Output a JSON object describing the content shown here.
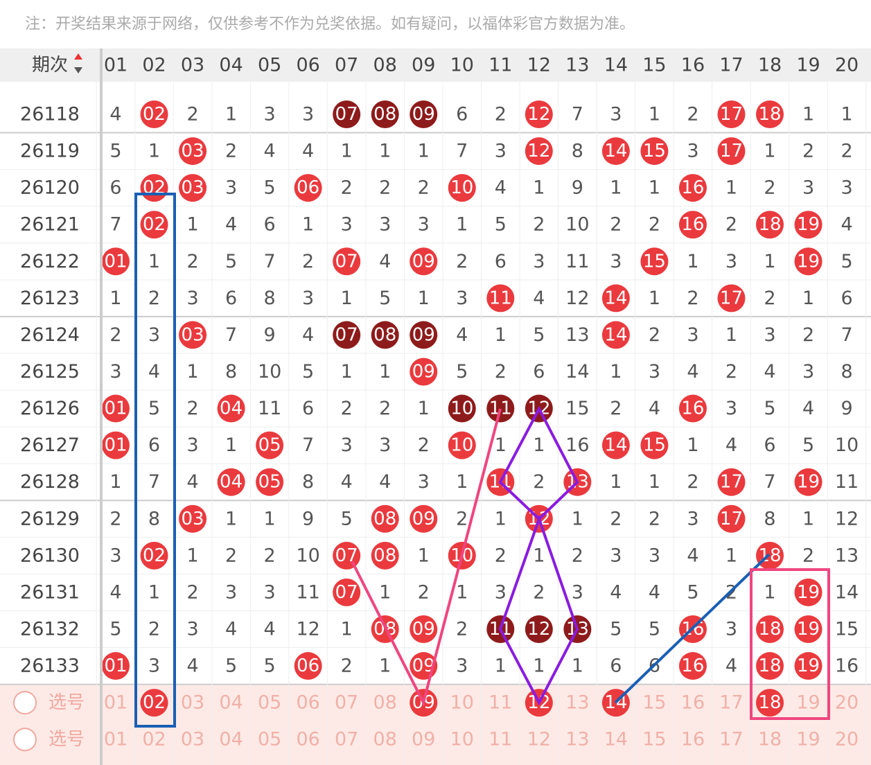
{
  "note": "注：开奖结果来源于网络，仅供参考不作为兑奖依据。如有疑问，以福体彩官方数据为准。",
  "header": {
    "period": "期次",
    "columns": [
      "01",
      "02",
      "03",
      "04",
      "05",
      "06",
      "07",
      "08",
      "09",
      "10",
      "11",
      "12",
      "13",
      "14",
      "15",
      "16",
      "17",
      "18",
      "19",
      "20"
    ]
  },
  "rows": [
    {
      "period": "26118",
      "cells": [
        "4",
        {
          "text": "02",
          "ball": "red"
        },
        "2",
        "1",
        "3",
        "3",
        {
          "text": "07",
          "ball": "dark"
        },
        {
          "text": "08",
          "ball": "dark"
        },
        {
          "text": "09",
          "ball": "dark"
        },
        "6",
        "2",
        {
          "text": "12",
          "ball": "red"
        },
        "7",
        "3",
        "1",
        "2",
        {
          "text": "17",
          "ball": "red"
        },
        {
          "text": "18",
          "ball": "red"
        },
        "1",
        "1"
      ]
    },
    {
      "period": "26119",
      "cells": [
        "5",
        "1",
        {
          "text": "03",
          "ball": "red"
        },
        "2",
        "4",
        "4",
        "1",
        "1",
        "1",
        "7",
        "3",
        {
          "text": "12",
          "ball": "red"
        },
        "8",
        {
          "text": "14",
          "ball": "red"
        },
        {
          "text": "15",
          "ball": "red"
        },
        "3",
        {
          "text": "17",
          "ball": "red"
        },
        "1",
        "2",
        "2"
      ]
    },
    {
      "period": "26120",
      "cells": [
        "6",
        {
          "text": "02",
          "ball": "red"
        },
        {
          "text": "03",
          "ball": "red"
        },
        "3",
        "5",
        {
          "text": "06",
          "ball": "red"
        },
        "2",
        "2",
        "2",
        {
          "text": "10",
          "ball": "red"
        },
        "4",
        "1",
        "9",
        "1",
        "1",
        {
          "text": "16",
          "ball": "red"
        },
        "1",
        "2",
        "3",
        "3"
      ]
    },
    {
      "period": "26121",
      "cells": [
        "7",
        {
          "text": "02",
          "ball": "red"
        },
        "1",
        "4",
        "6",
        "1",
        "3",
        "3",
        "3",
        "1",
        "5",
        "2",
        "10",
        "2",
        "2",
        {
          "text": "16",
          "ball": "red"
        },
        "2",
        {
          "text": "18",
          "ball": "red"
        },
        {
          "text": "19",
          "ball": "red"
        },
        "4"
      ]
    },
    {
      "period": "26122",
      "cells": [
        {
          "text": "01",
          "ball": "red"
        },
        "1",
        "2",
        "5",
        "7",
        "2",
        {
          "text": "07",
          "ball": "red"
        },
        "4",
        {
          "text": "09",
          "ball": "red"
        },
        "2",
        "6",
        "3",
        "11",
        "3",
        {
          "text": "15",
          "ball": "red"
        },
        "1",
        "3",
        "1",
        {
          "text": "19",
          "ball": "red"
        },
        "5"
      ]
    },
    {
      "period": "26123",
      "cells": [
        "1",
        "2",
        "3",
        "6",
        "8",
        "3",
        "1",
        "5",
        "1",
        "3",
        {
          "text": "11",
          "ball": "red"
        },
        "4",
        "12",
        {
          "text": "14",
          "ball": "red"
        },
        "1",
        "2",
        {
          "text": "17",
          "ball": "red"
        },
        "2",
        "1",
        "6"
      ]
    },
    {
      "period": "26124",
      "cells": [
        "2",
        "3",
        {
          "text": "03",
          "ball": "red"
        },
        "7",
        "9",
        "4",
        {
          "text": "07",
          "ball": "dark"
        },
        {
          "text": "08",
          "ball": "dark"
        },
        {
          "text": "09",
          "ball": "dark"
        },
        "4",
        "1",
        "5",
        "13",
        {
          "text": "14",
          "ball": "red"
        },
        "2",
        "3",
        "1",
        "3",
        "2",
        "7"
      ]
    },
    {
      "period": "26125",
      "cells": [
        "3",
        "4",
        "1",
        "8",
        "10",
        "5",
        "1",
        "1",
        {
          "text": "09",
          "ball": "red"
        },
        "5",
        "2",
        "6",
        "14",
        "1",
        "3",
        "4",
        "2",
        "4",
        "3",
        "8"
      ]
    },
    {
      "period": "26126",
      "cells": [
        {
          "text": "01",
          "ball": "red"
        },
        "5",
        "2",
        {
          "text": "04",
          "ball": "red"
        },
        "11",
        "6",
        "2",
        "2",
        "1",
        {
          "text": "10",
          "ball": "dark"
        },
        {
          "text": "11",
          "ball": "dark"
        },
        {
          "text": "12",
          "ball": "dark"
        },
        "15",
        "2",
        "4",
        {
          "text": "16",
          "ball": "red"
        },
        "3",
        "5",
        "4",
        "9"
      ]
    },
    {
      "period": "26127",
      "cells": [
        {
          "text": "01",
          "ball": "red"
        },
        "6",
        "3",
        "1",
        {
          "text": "05",
          "ball": "red"
        },
        "7",
        "3",
        "3",
        "2",
        {
          "text": "10",
          "ball": "red"
        },
        "1",
        "1",
        "16",
        {
          "text": "14",
          "ball": "red"
        },
        {
          "text": "15",
          "ball": "red"
        },
        "1",
        "4",
        "6",
        "5",
        "10"
      ]
    },
    {
      "period": "26128",
      "cells": [
        "1",
        "7",
        "4",
        {
          "text": "04",
          "ball": "red"
        },
        {
          "text": "05",
          "ball": "red"
        },
        "8",
        "4",
        "4",
        "3",
        "1",
        {
          "text": "11",
          "ball": "red"
        },
        "2",
        {
          "text": "13",
          "ball": "red"
        },
        "1",
        "1",
        "2",
        {
          "text": "17",
          "ball": "red"
        },
        "7",
        {
          "text": "19",
          "ball": "red"
        },
        "11"
      ]
    },
    {
      "period": "26129",
      "cells": [
        "2",
        "8",
        {
          "text": "03",
          "ball": "red"
        },
        "1",
        "1",
        "9",
        "5",
        {
          "text": "08",
          "ball": "red"
        },
        {
          "text": "09",
          "ball": "red"
        },
        "2",
        "1",
        {
          "text": "12",
          "ball": "red"
        },
        "1",
        "2",
        "2",
        "3",
        {
          "text": "17",
          "ball": "red"
        },
        "8",
        "1",
        "12"
      ]
    },
    {
      "period": "26130",
      "cells": [
        "3",
        {
          "text": "02",
          "ball": "red"
        },
        "1",
        "2",
        "2",
        "10",
        {
          "text": "07",
          "ball": "red"
        },
        {
          "text": "08",
          "ball": "red"
        },
        "1",
        {
          "text": "10",
          "ball": "red"
        },
        "2",
        "1",
        "2",
        "3",
        "3",
        "4",
        "1",
        {
          "text": "18",
          "ball": "red"
        },
        "2",
        "13"
      ]
    },
    {
      "period": "26131",
      "cells": [
        "4",
        "1",
        "2",
        "3",
        "3",
        "11",
        {
          "text": "07",
          "ball": "red"
        },
        "1",
        "2",
        "1",
        "3",
        "2",
        "3",
        "4",
        "4",
        "5",
        "2",
        "1",
        {
          "text": "19",
          "ball": "red"
        },
        "14"
      ]
    },
    {
      "period": "26132",
      "cells": [
        "5",
        "2",
        "3",
        "4",
        "4",
        "12",
        "1",
        {
          "text": "08",
          "ball": "red"
        },
        {
          "text": "09",
          "ball": "red"
        },
        "2",
        {
          "text": "11",
          "ball": "dark"
        },
        {
          "text": "12",
          "ball": "dark"
        },
        {
          "text": "13",
          "ball": "dark"
        },
        "5",
        "5",
        {
          "text": "16",
          "ball": "red"
        },
        "3",
        {
          "text": "18",
          "ball": "red"
        },
        {
          "text": "19",
          "ball": "red"
        },
        "15"
      ]
    },
    {
      "period": "26133",
      "cells": [
        {
          "text": "01",
          "ball": "red"
        },
        "3",
        "4",
        "5",
        "5",
        {
          "text": "06",
          "ball": "red"
        },
        "2",
        "1",
        {
          "text": "09",
          "ball": "red"
        },
        "3",
        "1",
        "1",
        "1",
        "6",
        "6",
        {
          "text": "16",
          "ball": "red"
        },
        "4",
        {
          "text": "18",
          "ball": "red"
        },
        {
          "text": "19",
          "ball": "red"
        },
        "16"
      ]
    }
  ],
  "pick_rows": [
    {
      "label": "选号",
      "cells": [
        "01",
        {
          "text": "02",
          "ball": "red"
        },
        "03",
        "04",
        "05",
        "06",
        "07",
        "08",
        {
          "text": "09",
          "ball": "red"
        },
        "10",
        "11",
        {
          "text": "12",
          "ball": "red"
        },
        "13",
        {
          "text": "14",
          "ball": "red"
        },
        "15",
        "16",
        "17",
        {
          "text": "18",
          "ball": "red"
        },
        "19",
        "20"
      ]
    },
    {
      "label": "选号",
      "cells": [
        "01",
        "02",
        "03",
        "04",
        "05",
        "06",
        "07",
        "08",
        "09",
        "10",
        "11",
        "12",
        "13",
        "14",
        "15",
        "16",
        "17",
        "18",
        "19",
        "20"
      ]
    }
  ]
}
